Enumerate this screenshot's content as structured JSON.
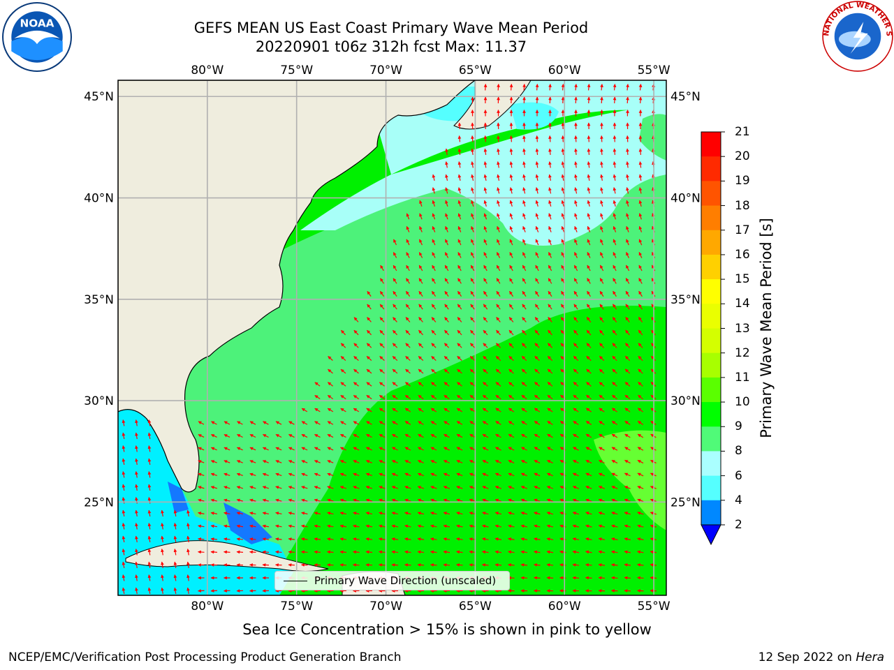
{
  "title": {
    "line1": "GEFS MEAN US East Coast Primary Wave Mean Period",
    "line2": "20220901 t06z 312h fcst   Max: 11.37"
  },
  "logos": {
    "left": "noaa-logo",
    "right": "national-weather-service-logo",
    "noaa_text": "NOAA",
    "nws_text": "NATIONAL WEATHER SERVICE"
  },
  "map": {
    "lon_labels": [
      "80°W",
      "75°W",
      "70°W",
      "65°W",
      "60°W",
      "55°W"
    ],
    "lat_labels": [
      "45°N",
      "40°N",
      "35°N",
      "30°N",
      "25°N"
    ],
    "lon_values": [
      -80,
      -75,
      -70,
      -65,
      -60,
      -55
    ],
    "lat_values": [
      45,
      40,
      35,
      30,
      25
    ],
    "extent": {
      "lon_min": -85,
      "lon_max": -54.3,
      "lat_min": 20.4,
      "lat_max": 45.8
    },
    "colors": {
      "land": "#efedde",
      "grid": "#b0b0b0",
      "arrow": "#ff0000"
    }
  },
  "legend": {
    "label": "Primary Wave Direction (unscaled)"
  },
  "colorbar": {
    "label": "Primary Wave Mean Period [s]",
    "ticks": [
      "21",
      "20",
      "19",
      "18",
      "17",
      "16",
      "15",
      "14",
      "13",
      "12",
      "11",
      "10",
      "9",
      "8",
      "6",
      "4",
      "2"
    ],
    "colors": [
      "#ff0000",
      "#ff2a00",
      "#ff5400",
      "#ff7e00",
      "#ffa800",
      "#ffd000",
      "#ffff00",
      "#eaff00",
      "#d4ff00",
      "#a8ff00",
      "#5aff00",
      "#00ff00",
      "#50fa78",
      "#aaffff",
      "#55ffff",
      "#00ffff",
      "#0088ff"
    ],
    "under_color": "#0000ff"
  },
  "footer": {
    "ice_note": "Sea Ice Concentration > 15% is shown in pink to yellow",
    "credit": "NCEP/EMC/Verification Post Processing Product Generation Branch",
    "date": "12 Sep 2022 on",
    "host": "Hera"
  }
}
